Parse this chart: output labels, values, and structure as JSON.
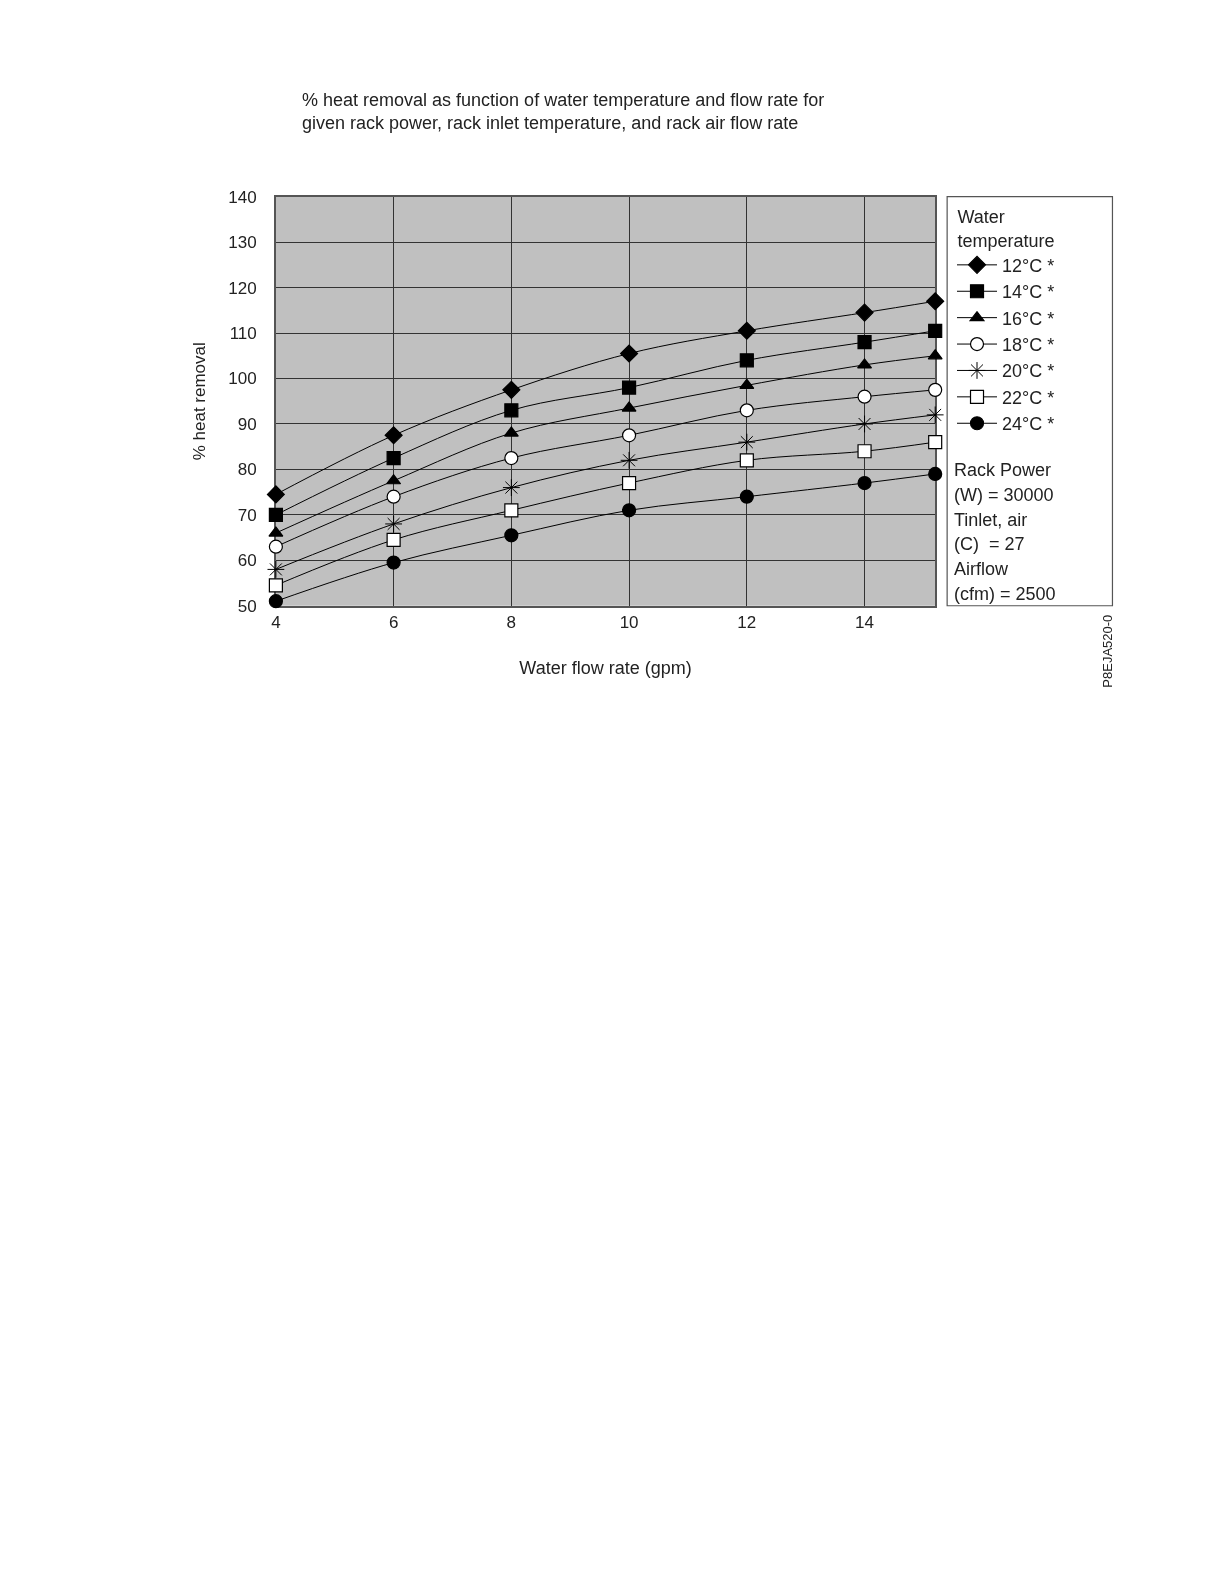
{
  "chart_data": {
    "type": "line",
    "title": "% heat removal as function of water temperature and flow rate for given rack power, rack inlet temperature, and rack air flow rate",
    "xlabel": "Water flow rate (gpm)",
    "ylabel": "% heat removal",
    "legend_title": "Water temperature",
    "x": [
      4,
      6,
      8,
      10,
      12,
      14,
      15.2
    ],
    "xlim": [
      4,
      15.2
    ],
    "xticks": [
      4,
      6,
      8,
      10,
      12,
      14
    ],
    "ylim": [
      50,
      140
    ],
    "yticks": [
      50,
      60,
      70,
      80,
      90,
      100,
      110,
      120,
      130,
      140
    ],
    "grid": true,
    "legend": "right",
    "line_style": "solid",
    "series": [
      {
        "name": "12°C *",
        "color": "#000000",
        "marker": "diamond",
        "values": [
          74.5,
          87.5,
          97.5,
          105.5,
          110.5,
          114.5,
          117
        ]
      },
      {
        "name": "14°C *",
        "color": "#000000",
        "marker": "square",
        "values": [
          70,
          82.5,
          93,
          98,
          104,
          108,
          110.5
        ]
      },
      {
        "name": "16°C *",
        "color": "#000000",
        "marker": "triangle",
        "values": [
          66,
          77.5,
          88,
          93.5,
          98.5,
          103,
          105
        ]
      },
      {
        "name": "18°C *",
        "color": "#000000",
        "marker": "circle",
        "colors": [
          "#ffffff",
          "#ffffff",
          "#ffffff",
          "#ffffff",
          "#ffffff",
          "#ffffff",
          "#ffffff"
        ],
        "values": [
          63,
          74,
          82.5,
          87.5,
          93,
          96,
          97.5
        ]
      },
      {
        "name": "20°C *",
        "color": "#000000",
        "marker": "cross",
        "values": [
          58,
          68,
          76,
          82,
          86,
          90,
          92
        ]
      },
      {
        "name": "22°C *",
        "color": "#000000",
        "marker": "square",
        "colors": [
          "#ffffff",
          "#ffffff",
          "#ffffff",
          "#ffffff",
          "#ffffff",
          "#ffffff",
          "#ffffff"
        ],
        "values": [
          54.5,
          64.5,
          71,
          77,
          82,
          84,
          86
        ]
      },
      {
        "name": "24°C *",
        "color": "#000000",
        "marker": "circle",
        "values": [
          51,
          59.5,
          65.5,
          71,
          74,
          77,
          79
        ]
      }
    ],
    "annotations": [
      "Rack Power",
      "(W) = 30000",
      "Tinlet, air",
      "(C)  = 27",
      "Airflow",
      "(cfm) = 2500",
      "P8EJA520-0"
    ]
  }
}
